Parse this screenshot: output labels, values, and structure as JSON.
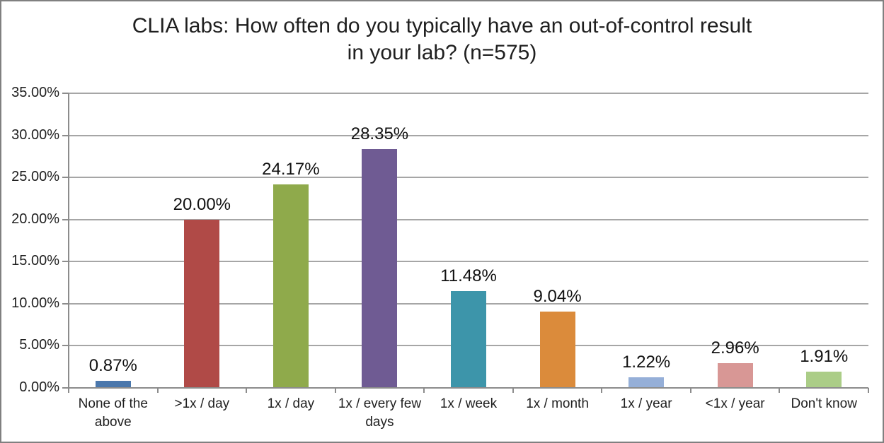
{
  "chart_data": {
    "type": "bar",
    "title": "CLIA labs: How often do you typically have an out-of-control result in your lab? (n=575)",
    "categories": [
      "None of the above",
      ">1x / day",
      "1x / day",
      "1x / every few days",
      "1x / week",
      "1x / month",
      "1x / year",
      "<1x / year",
      "Don't know"
    ],
    "values": [
      0.87,
      20.0,
      24.17,
      28.35,
      11.48,
      9.04,
      1.22,
      2.96,
      1.91
    ],
    "value_labels": [
      "0.87%",
      "20.00%",
      "24.17%",
      "28.35%",
      "11.48%",
      "9.04%",
      "1.22%",
      "2.96%",
      "1.91%"
    ],
    "bar_colors": [
      "#4A77AC",
      "#B04A47",
      "#8FAA4B",
      "#6F5B93",
      "#3D95AA",
      "#DB8B3B",
      "#95AFD8",
      "#D89795",
      "#ABCD87"
    ],
    "xlabel": "",
    "ylabel": "",
    "ylim": [
      0,
      35
    ],
    "ytick_step": 5,
    "ytick_labels": [
      "0.00%",
      "5.00%",
      "10.00%",
      "15.00%",
      "20.00%",
      "25.00%",
      "30.00%",
      "35.00%"
    ],
    "grid": true,
    "legend": "none"
  },
  "style": {
    "grid_color": "#A6A6A6",
    "axis_color": "#8C8C8C",
    "frame_border_color": "#808080",
    "background_color": "#FFFFFF",
    "text_color": "#1F1F1F"
  }
}
